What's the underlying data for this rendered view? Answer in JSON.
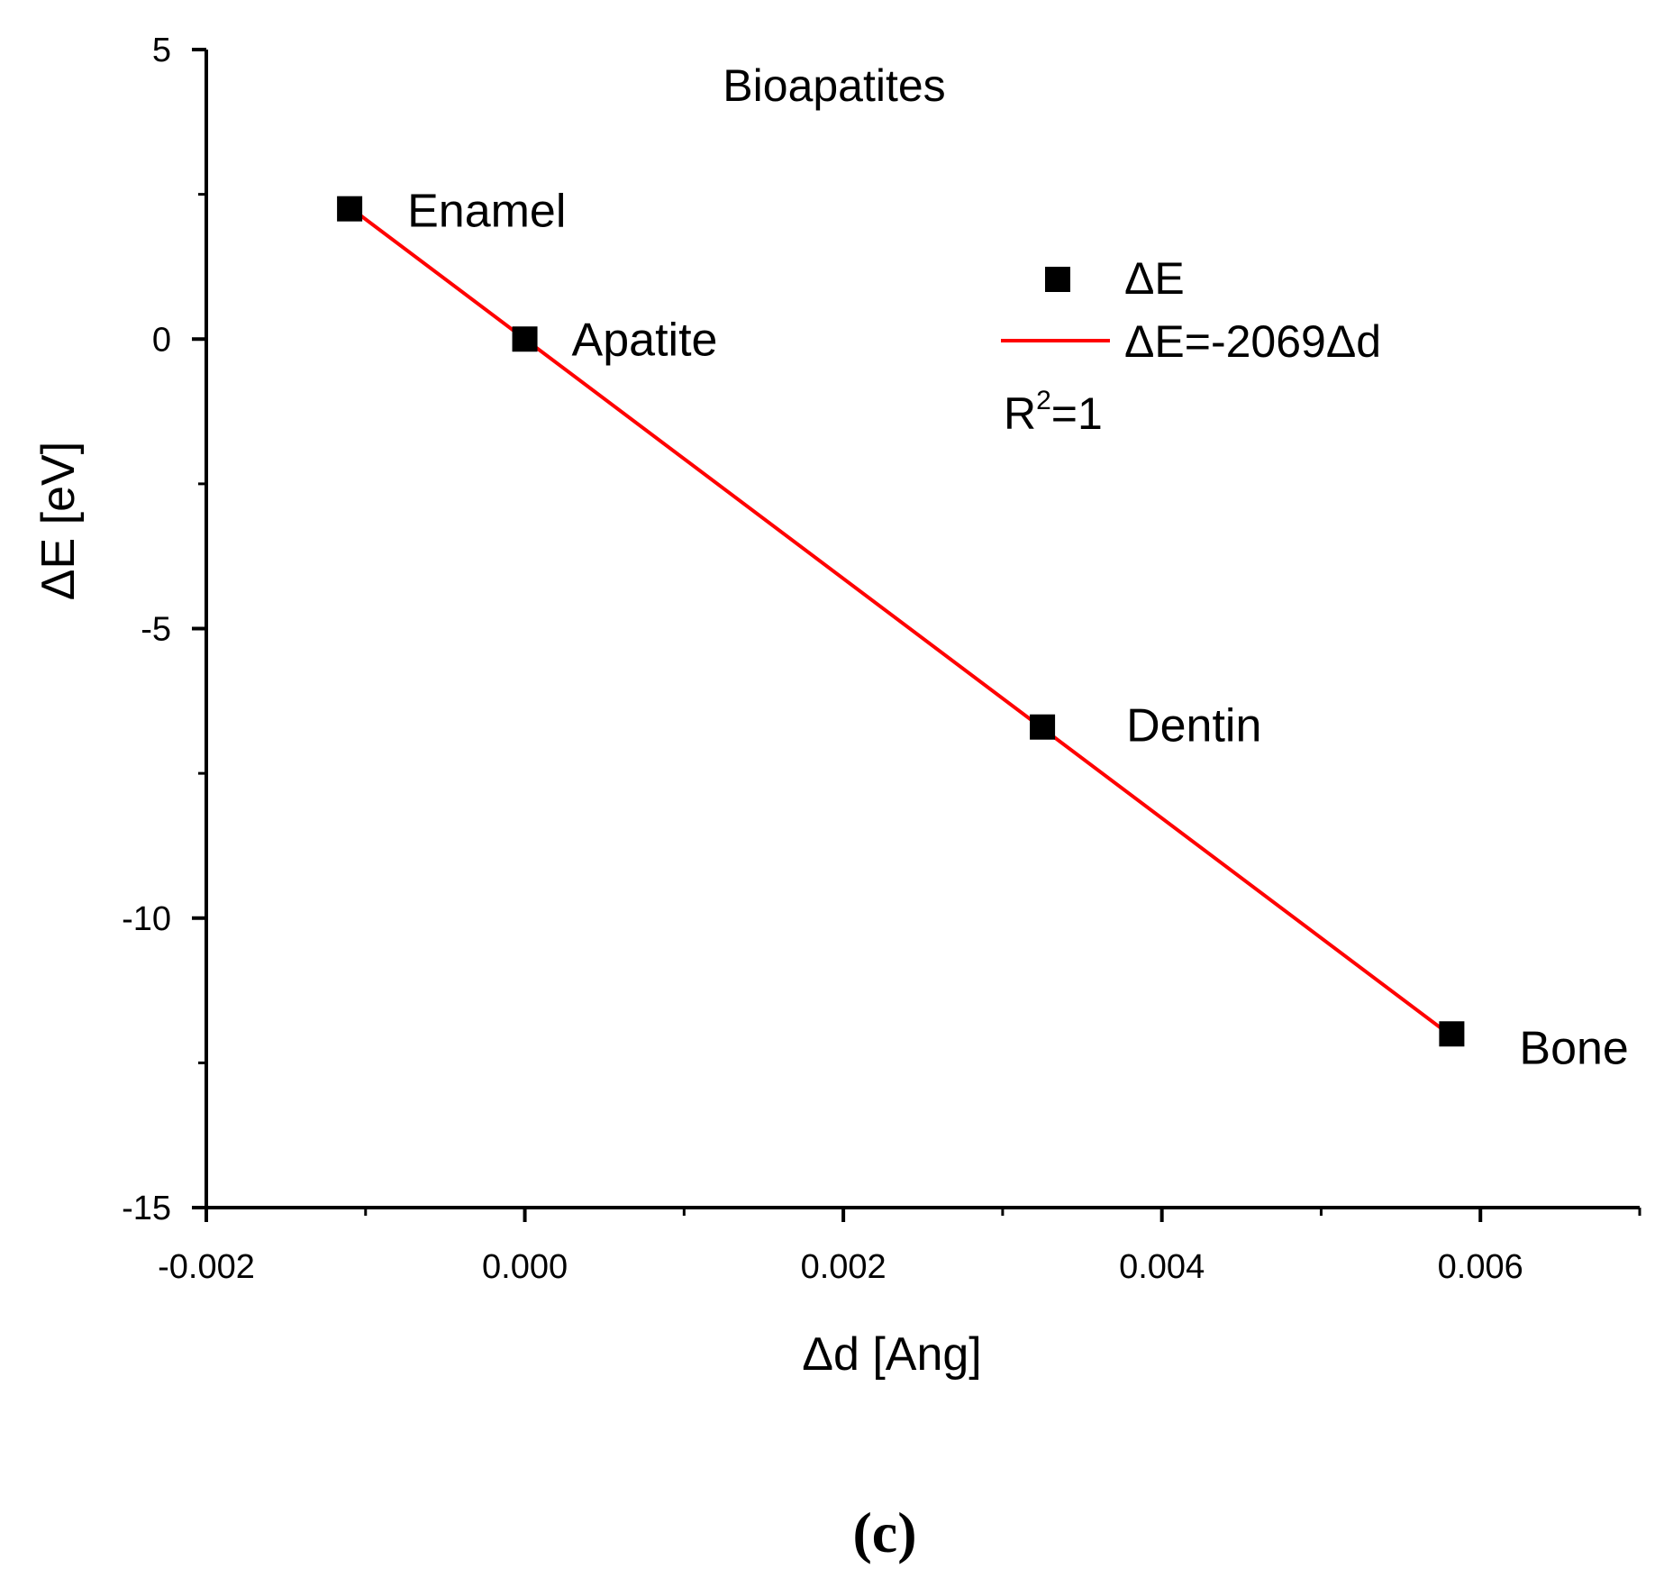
{
  "chart_data": {
    "type": "scatter",
    "title": "Bioapatites",
    "xlabel": "Δd [Ang]",
    "ylabel": "ΔE [eV]",
    "xlim": [
      -0.002,
      0.007
    ],
    "ylim": [
      -15,
      5
    ],
    "xticks": [
      -0.002,
      0.0,
      0.002,
      0.004,
      0.006
    ],
    "xtick_labels": [
      "-0.002",
      "0.000",
      "0.002",
      "0.004",
      "0.006"
    ],
    "xminor_ticks": [
      -0.001,
      0.001,
      0.003,
      0.005,
      0.007
    ],
    "yticks": [
      5,
      0,
      -5,
      -10,
      -15
    ],
    "ytick_labels": [
      "5",
      "0",
      "-5",
      "-10",
      "-15"
    ],
    "yminor_ticks": [
      2.5,
      -2.5,
      -7.5,
      -12.5
    ],
    "grid": false,
    "series": [
      {
        "name": "ΔE",
        "kind": "scatter",
        "marker": "square",
        "color": "#000000",
        "points": [
          {
            "label": "Enamel",
            "x": -0.0011,
            "y": 2.25
          },
          {
            "label": "Apatite",
            "x": 0.0,
            "y": 0.0
          },
          {
            "label": "Dentin",
            "x": 0.00325,
            "y": -6.7
          },
          {
            "label": "Bone",
            "x": 0.00582,
            "y": -12.0
          }
        ]
      },
      {
        "name": "ΔE=-2069Δd",
        "kind": "line",
        "color": "#ff0000",
        "x": [
          -0.0011,
          0.00582
        ],
        "y": [
          2.276,
          -12.04
        ]
      }
    ],
    "annotations": [
      {
        "text": "R",
        "superscript": "2",
        "suffix": "=1"
      }
    ],
    "legend_position": "top-right"
  },
  "caption": "(c)"
}
